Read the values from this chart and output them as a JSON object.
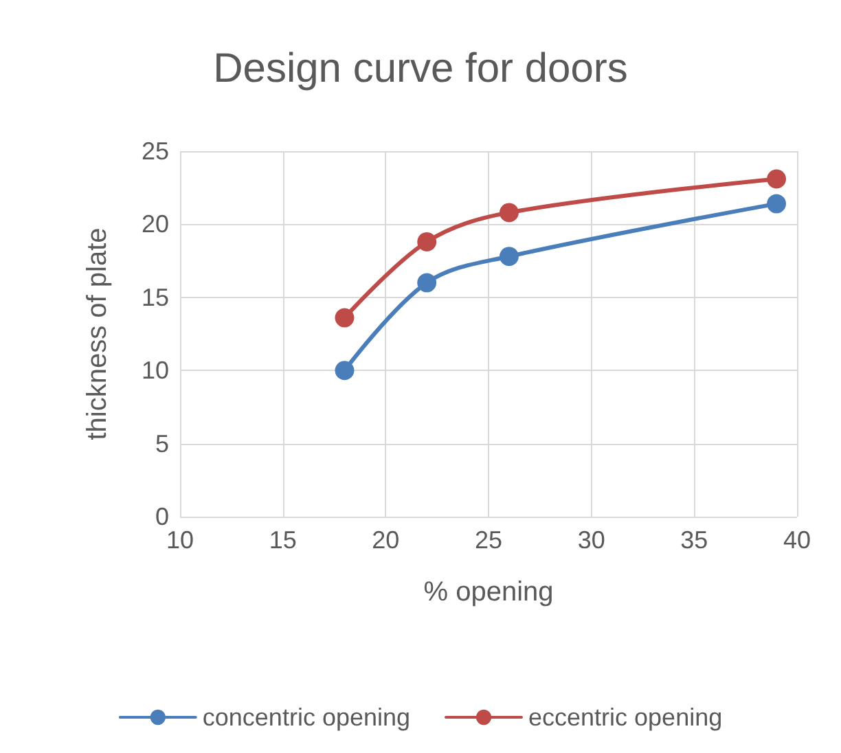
{
  "chart_data": {
    "type": "line",
    "title": "Design curve for doors",
    "xlabel": "% opening",
    "ylabel": "thickness of plate",
    "x": [
      18,
      22,
      26,
      39
    ],
    "series": [
      {
        "name": "concentric opening",
        "color": "#4a7ebb",
        "values": [
          10,
          16,
          17.8,
          21.4
        ]
      },
      {
        "name": "eccentric opening",
        "color": "#be4b48",
        "values": [
          13.6,
          18.8,
          20.8,
          23.1
        ]
      }
    ],
    "xlim": [
      10,
      40
    ],
    "xticks": [
      10,
      15,
      20,
      25,
      30,
      35,
      40
    ],
    "ylim": [
      0,
      25
    ],
    "yticks": [
      0,
      5,
      10,
      15,
      20,
      25
    ],
    "grid": true,
    "legend": "bottom",
    "marker": "circle",
    "line_style": "solid"
  }
}
